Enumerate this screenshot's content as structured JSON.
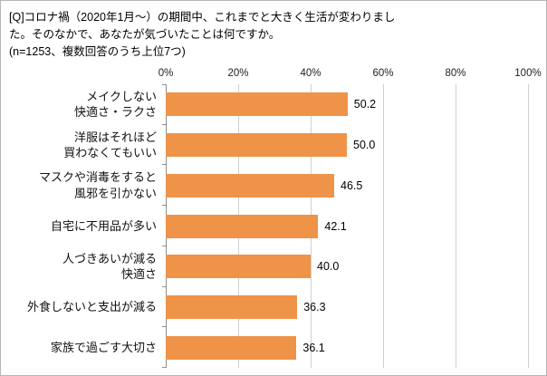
{
  "chart_data": {
    "type": "bar",
    "orientation": "horizontal",
    "title": "[Q]コロナ禍（2020年1月～）の期間中、これまでと大きく生活が変わりました。そのなかで、あなたが気づいたことは何ですか。",
    "note": "(n=1253、複数回答のうち上位7つ)",
    "title_display": "[Q]コロナ禍（2020年1月～）の期間中、これまでと大きく生活が変わりまし\nた。そのなかで、あなたが気づいたことは何ですか。\n(n=1253、複数回答のうち上位7つ)",
    "x_axis": {
      "position": "top",
      "min": 0,
      "max": 100,
      "grid": true,
      "ticks": [
        "0%",
        "20%",
        "40%",
        "60%",
        "80%",
        "100%"
      ],
      "tick_positions": [
        0,
        20,
        40,
        60,
        80,
        100
      ]
    },
    "legend": "none",
    "items": [
      {
        "label": "メイクしない\n快適さ・ラクさ",
        "value": 50.2,
        "display": "50.2"
      },
      {
        "label": "洋服はそれほど\n買わなくてもいい",
        "value": 50.0,
        "display": "50.0"
      },
      {
        "label": "マスクや消毒をすると\n風邪を引かない",
        "value": 46.5,
        "display": "46.5"
      },
      {
        "label": "自宅に不用品が多い",
        "value": 42.1,
        "display": "42.1"
      },
      {
        "label": "人づきあいが減る\n快適さ",
        "value": 40.0,
        "display": "40.0"
      },
      {
        "label": "外食しないと支出が減る",
        "value": 36.3,
        "display": "36.3"
      },
      {
        "label": "家族で過ごす大切さ",
        "value": 36.1,
        "display": "36.1"
      }
    ],
    "colors": {
      "bar": "#EF9349",
      "grid": "#CFCFCF",
      "axis": "#8F8F8F",
      "frame_border": "#B5B5B5",
      "text": "#000000"
    }
  }
}
